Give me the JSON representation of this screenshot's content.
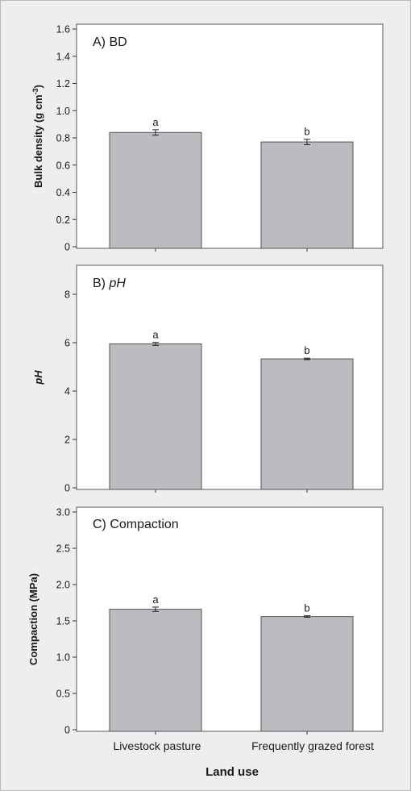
{
  "chart_data": [
    {
      "type": "bar",
      "title": "A) BD",
      "ylabel": "Bulk density (g cm⁻³)",
      "categories": [
        "Livestock pasture",
        "Frequently grazed forest"
      ],
      "values": [
        0.84,
        0.77
      ],
      "errors": [
        0.02,
        0.02
      ],
      "letters": [
        "a",
        "b"
      ],
      "ylim": [
        0,
        1.6
      ],
      "yticks": [
        "0",
        "0.2",
        "0.4",
        "0.6",
        "0.8",
        "1.0",
        "1.2",
        "1.4",
        "1.6"
      ],
      "bar_color": "#bcbcc0"
    },
    {
      "type": "bar",
      "title_prefix": "B) ",
      "title_italic": "pH",
      "ylabel": "pH",
      "categories": [
        "Livestock pasture",
        "Frequently grazed forest"
      ],
      "values": [
        5.95,
        5.33
      ],
      "errors": [
        0.06,
        0.03
      ],
      "letters": [
        "a",
        "b"
      ],
      "ylim": [
        0,
        9
      ],
      "yticks": [
        "0",
        "2",
        "4",
        "6",
        "8"
      ],
      "bar_color": "#bcbcc0"
    },
    {
      "type": "bar",
      "title": "C) Compaction",
      "ylabel": "Compaction (MPa)",
      "categories": [
        "Livestock pasture",
        "Frequently grazed forest"
      ],
      "values": [
        1.66,
        1.56
      ],
      "errors": [
        0.03,
        0.01
      ],
      "letters": [
        "a",
        "b"
      ],
      "ylim": [
        0,
        3.0
      ],
      "yticks": [
        "0",
        "0.5",
        "1.0",
        "1.5",
        "2.0",
        "2.5",
        "3.0"
      ],
      "bar_color": "#bcbcc0"
    }
  ],
  "xaxis": {
    "categories": [
      "Livestock pasture",
      "Frequently grazed forest"
    ],
    "label": "Land use"
  }
}
